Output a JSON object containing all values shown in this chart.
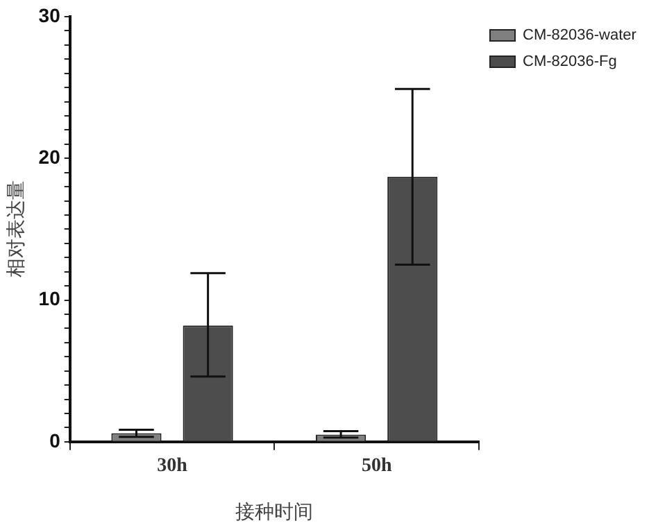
{
  "chart_data": {
    "type": "bar",
    "xlabel": "接种时间",
    "ylabel": "相对表达量",
    "categories": [
      "30h",
      "50h"
    ],
    "series": [
      {
        "name": "CM-82036-water",
        "color": "#808080",
        "values": [
          0.6,
          0.5
        ],
        "errors": [
          [
            0.35,
            0.85
          ],
          [
            0.3,
            0.75
          ]
        ]
      },
      {
        "name": "CM-82036-Fg",
        "color": "#4d4d4d",
        "values": [
          8.2,
          18.7
        ],
        "errors": [
          [
            4.6,
            11.9
          ],
          [
            12.5,
            24.9
          ]
        ]
      }
    ],
    "ylim": [
      0,
      30
    ],
    "yticks": [
      0,
      {
        "value": 1,
        "label": null
      },
      {
        "value": 2,
        "label": null
      },
      {
        "value": 3,
        "label": null
      },
      {
        "value": 4,
        "label": null
      },
      {
        "value": 5,
        "label": null
      },
      {
        "value": 6,
        "label": null
      },
      {
        "value": 7,
        "label": null
      },
      {
        "value": 8,
        "label": null
      },
      {
        "value": 9,
        "label": null
      },
      10,
      {
        "value": 11,
        "label": null
      },
      {
        "value": 12,
        "label": null
      },
      {
        "value": 13,
        "label": null
      },
      {
        "value": 14,
        "label": null
      },
      {
        "value": 15,
        "label": null
      },
      {
        "value": 16,
        "label": null
      },
      {
        "value": 17,
        "label": null
      },
      {
        "value": 18,
        "label": null
      },
      {
        "value": 19,
        "label": null
      },
      20,
      {
        "value": 21,
        "label": null
      },
      {
        "value": 22,
        "label": null
      },
      {
        "value": 23,
        "label": null
      },
      {
        "value": 24,
        "label": null
      },
      {
        "value": 25,
        "label": null
      },
      {
        "value": 26,
        "label": null
      },
      {
        "value": 27,
        "label": null
      },
      {
        "value": 28,
        "label": null
      },
      {
        "value": 29,
        "label": null
      },
      30
    ],
    "legend": "top right",
    "grid": false
  }
}
